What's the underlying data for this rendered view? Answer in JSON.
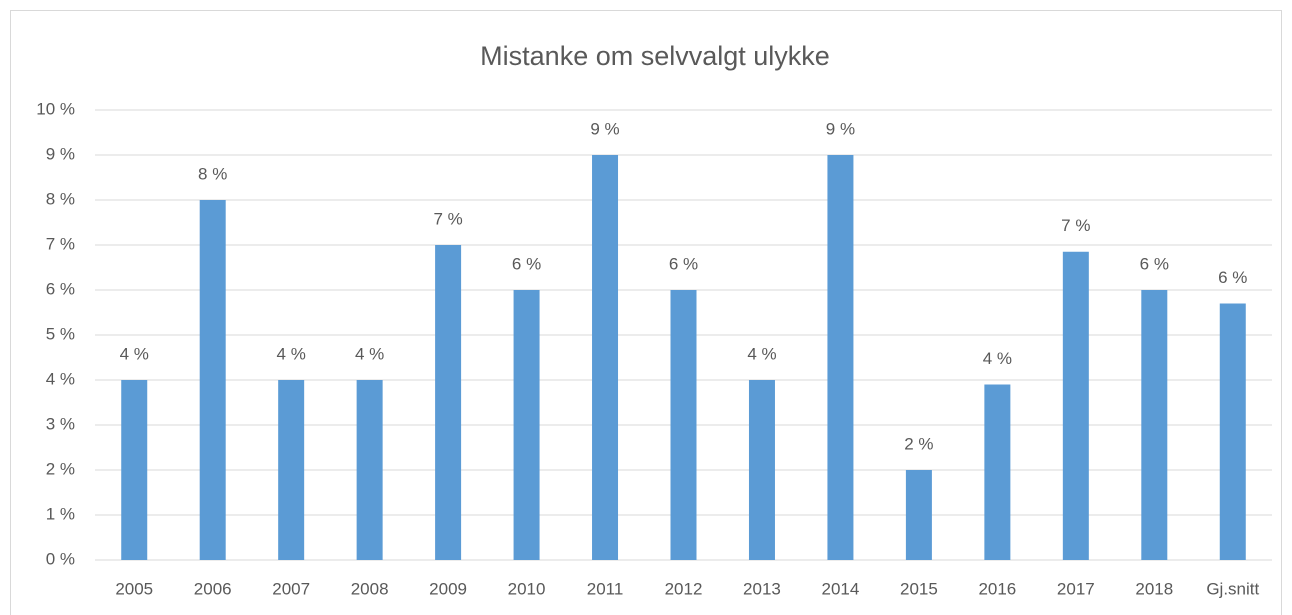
{
  "chart_data": {
    "type": "bar",
    "title": "Mistanke om selvvalgt ulykke",
    "categories": [
      "2005",
      "2006",
      "2007",
      "2008",
      "2009",
      "2010",
      "2011",
      "2012",
      "2013",
      "2014",
      "2015",
      "2016",
      "2017",
      "2018",
      "Gj.snitt"
    ],
    "values": [
      4,
      8,
      4,
      4,
      7,
      6,
      9,
      6,
      4,
      9,
      2,
      3.9,
      6.85,
      6,
      5.7
    ],
    "value_labels": [
      "4 %",
      "8 %",
      "4 %",
      "4 %",
      "7 %",
      "6 %",
      "9 %",
      "6 %",
      "4 %",
      "9 %",
      "2 %",
      "4 %",
      "7 %",
      "6 %",
      "6 %"
    ],
    "color": "#5b9bd5",
    "ylim": [
      0,
      10
    ],
    "yticks": [
      {
        "value": 0,
        "label": "0 %"
      },
      {
        "value": 1,
        "label": "1 %"
      },
      {
        "value": 2,
        "label": "2 %"
      },
      {
        "value": 3,
        "label": "3 %"
      },
      {
        "value": 4,
        "label": "4 %"
      },
      {
        "value": 5,
        "label": "5 %"
      },
      {
        "value": 6,
        "label": "6 %"
      },
      {
        "value": 7,
        "label": "7 %"
      },
      {
        "value": 8,
        "label": "8 %"
      },
      {
        "value": 9,
        "label": "9 %"
      },
      {
        "value": 10,
        "label": "10 %"
      }
    ],
    "grid": true
  }
}
